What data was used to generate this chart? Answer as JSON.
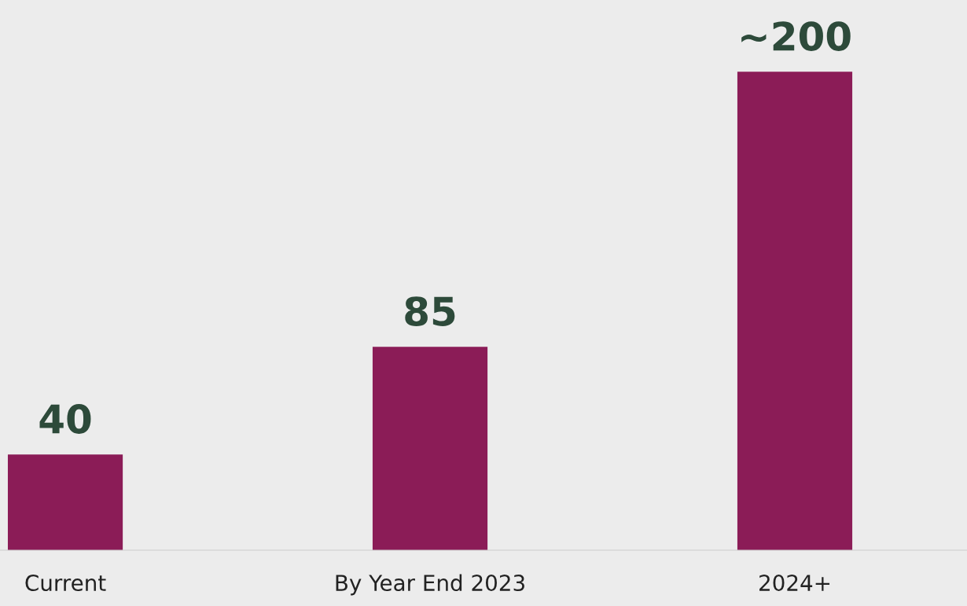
{
  "chart_data": {
    "type": "bar",
    "categories": [
      "Current",
      "By Year End 2023",
      "2024+"
    ],
    "values": [
      40,
      85,
      200
    ],
    "value_labels": [
      "40",
      "85",
      "~200"
    ],
    "color": "#8b1c57",
    "ylim": [
      0,
      230
    ],
    "grid": false,
    "legend": false
  }
}
